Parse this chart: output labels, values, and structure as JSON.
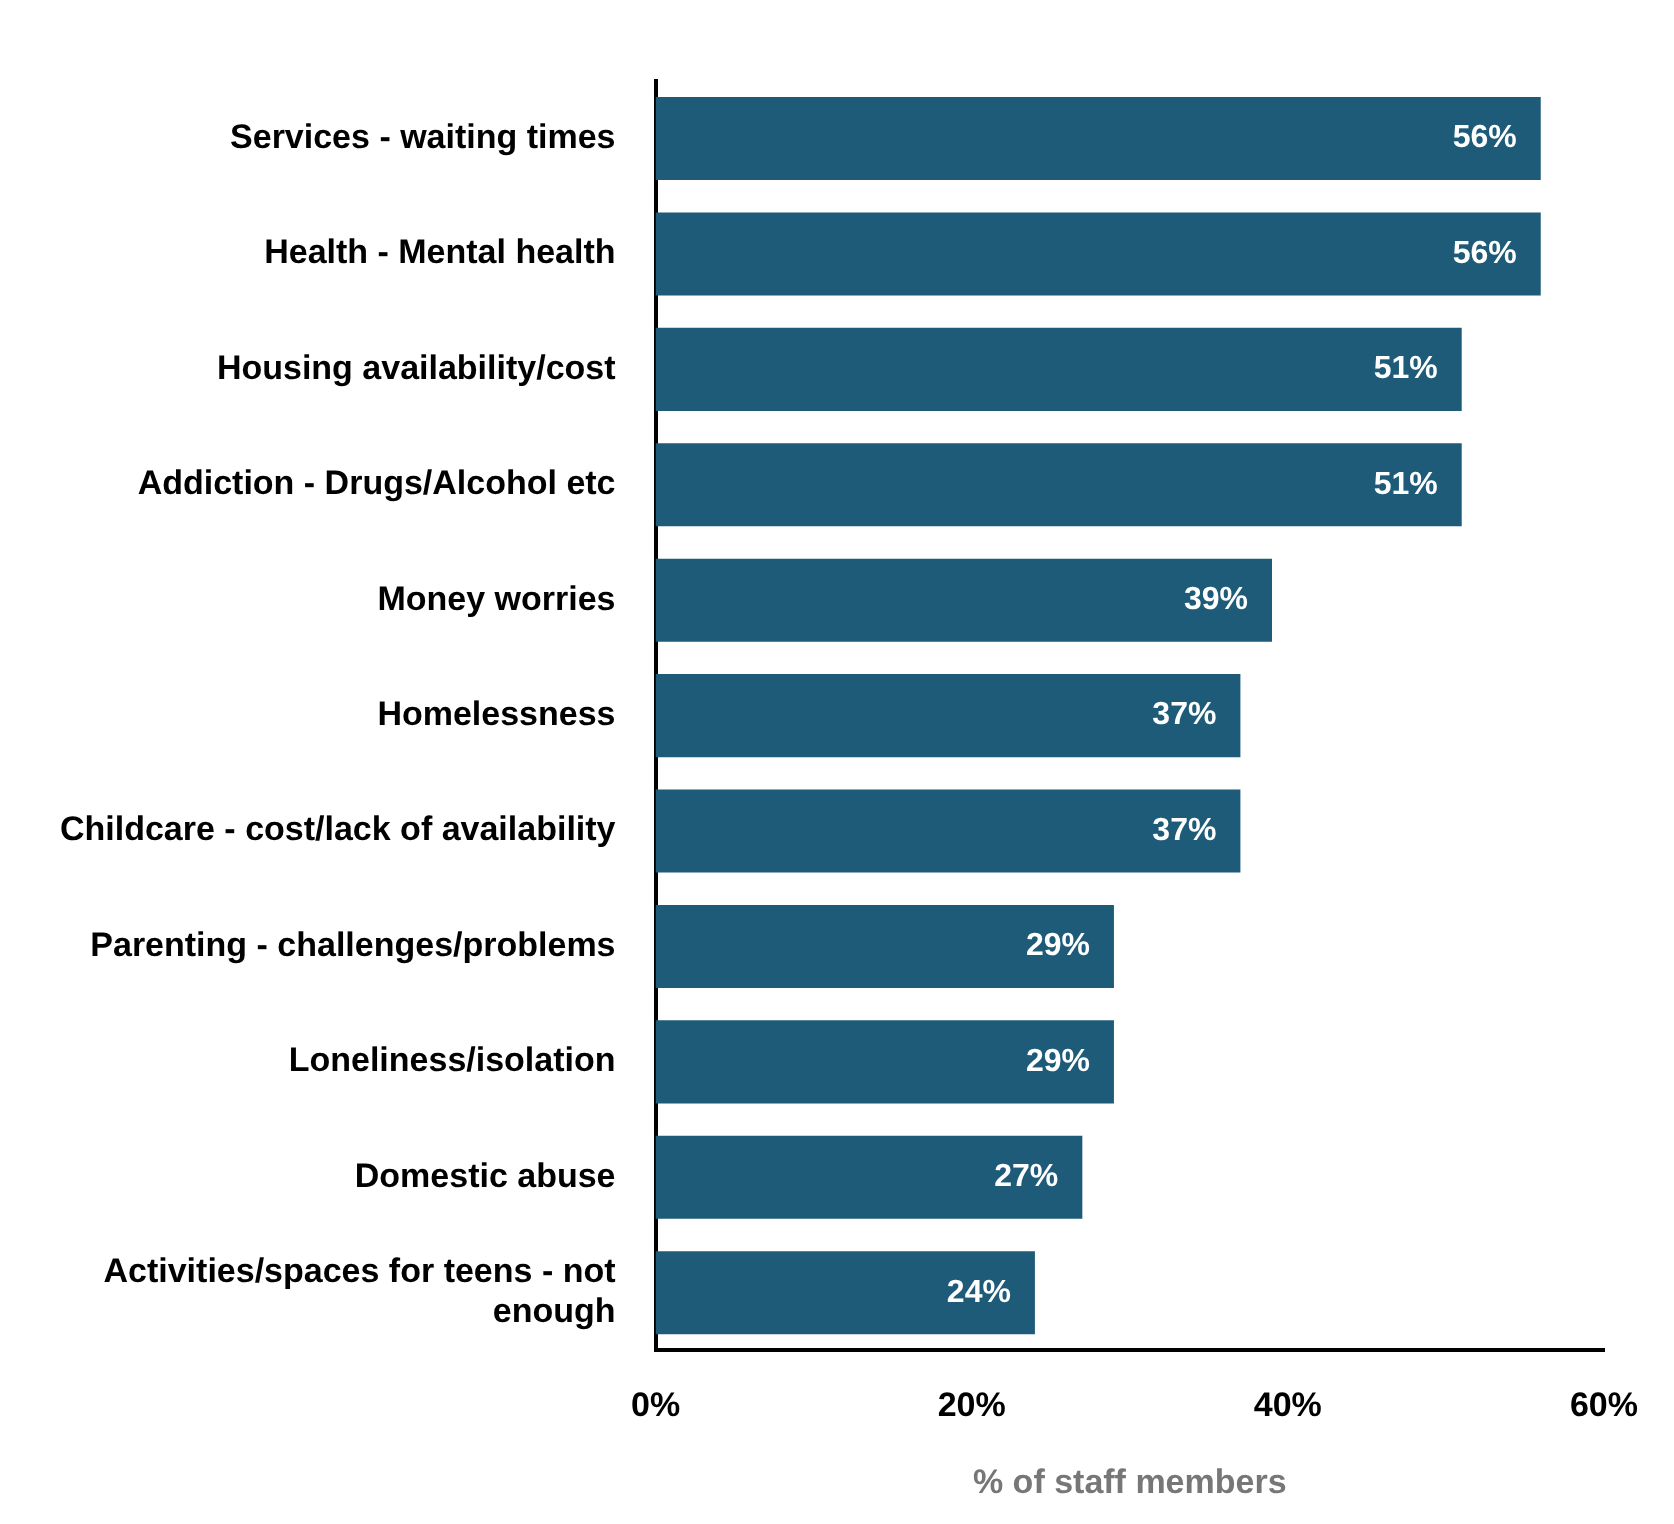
{
  "chart_data": {
    "type": "bar",
    "orientation": "horizontal",
    "xlabel": "% of staff members",
    "categories": [
      "Services - waiting times",
      "Health - Mental health",
      "Housing availability/cost",
      "Addiction - Drugs/Alcohol etc",
      "Money worries",
      "Homelessness",
      "Childcare - cost/lack of availability",
      "Parenting - challenges/problems",
      "Loneliness/isolation",
      "Domestic abuse",
      "Activities/spaces for teens - not enough"
    ],
    "values": [
      56,
      56,
      51,
      51,
      39,
      37,
      37,
      29,
      29,
      27,
      24
    ],
    "value_labels": [
      "56%",
      "56%",
      "51%",
      "51%",
      "39%",
      "37%",
      "37%",
      "29%",
      "29%",
      "27%",
      "24%"
    ],
    "color": "#1d5b79",
    "xlim": [
      0,
      60
    ],
    "xticks": [
      {
        "value": 0,
        "label": "0%"
      },
      {
        "value": 20,
        "label": "20%"
      },
      {
        "value": 40,
        "label": "40%"
      },
      {
        "value": 60,
        "label": "60%"
      }
    ],
    "grid": false,
    "legend": false
  }
}
